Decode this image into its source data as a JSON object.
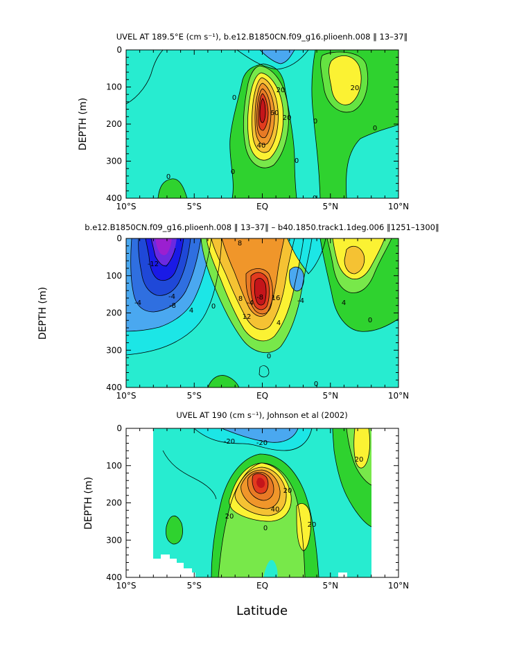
{
  "colors": {
    "neg_violet": "#9b1fd0",
    "neg_blue": "#1a1ae6",
    "neg_mid": "#2f6fe0",
    "neg_light": "#4aa8f0",
    "near_zero": "#1ce6e6",
    "zero_band": "#27ecd0",
    "pos_light": "#78e84a",
    "pos_green": "#2fd22f",
    "pos_yellow": "#fbf233",
    "pos_gold": "#f5c233",
    "pos_orange": "#f0962a",
    "pos_red": "#e23b1e",
    "pos_darkred": "#c4151a",
    "contour": "#000000"
  },
  "xlabel": "Latitude",
  "chart_data": [
    {
      "type": "contour",
      "title": "UVEL AT 189.5°E (cm s⁻¹), b.e12.B1850CN.f09_g16.plioenh.008 ‖ 13–37‖",
      "ylabel": "DEPTH (m)",
      "x_ticks": [
        "10°S",
        "5°S",
        "EQ",
        "5°N",
        "10°N"
      ],
      "x_values": [
        -10,
        -5,
        0,
        5,
        10
      ],
      "xlim": [
        -10,
        10
      ],
      "y_ticks": [
        "0",
        "100",
        "200",
        "300",
        "400"
      ],
      "y_values": [
        0,
        100,
        200,
        300,
        400
      ],
      "ylim": [
        0,
        400
      ],
      "y_inverted": true,
      "contour_labels": [
        "0",
        "0",
        "0",
        "0",
        "0",
        "0",
        "0",
        "20",
        "20",
        "20",
        "40",
        "60"
      ],
      "features": [
        {
          "name": "Equatorial Undercurrent core",
          "lat": 0,
          "depth": 150,
          "max": 80
        },
        {
          "name": "NECC core",
          "lat": 6,
          "depth": 80,
          "max": 30
        }
      ]
    },
    {
      "type": "contour",
      "title": "b.e12.B1850CN.f09_g16.plioenh.008 ‖ 13–37‖ – b40.1850.track1.1deg.006 ‖1251–1300‖",
      "ylabel": "DEPTH (m)",
      "x_ticks": [
        "10°S",
        "5°S",
        "EQ",
        "5°N",
        "10°N"
      ],
      "x_values": [
        -10,
        -5,
        0,
        5,
        10
      ],
      "xlim": [
        -10,
        10
      ],
      "y_ticks": [
        "0",
        "100",
        "200",
        "300",
        "400"
      ],
      "y_values": [
        0,
        100,
        200,
        300,
        400
      ],
      "ylim": [
        0,
        400
      ],
      "y_inverted": true,
      "contour_labels": [
        "8",
        "8",
        "-8",
        "-12",
        "-4",
        "-4",
        "4",
        "4",
        "4",
        "0",
        "0",
        "0",
        "0",
        "-4",
        "16",
        "12",
        "-8",
        "-4"
      ],
      "features": [
        {
          "name": "negative anomaly",
          "lat": -7.5,
          "depth": 40,
          "min": -20
        },
        {
          "name": "positive anomaly core",
          "lat": 0,
          "depth": 150,
          "max": 20
        },
        {
          "name": "northern positive anomaly",
          "lat": 6.5,
          "depth": 60,
          "max": 12
        }
      ]
    },
    {
      "type": "contour",
      "title": "UVEL AT 190 (cm s⁻¹), Johnson et al (2002)",
      "ylabel": "DEPTH (m)",
      "x_ticks": [
        "10°S",
        "5°S",
        "EQ",
        "5°N",
        "10°N"
      ],
      "x_values": [
        -10,
        -5,
        0,
        5,
        10
      ],
      "xlim": [
        -10,
        10
      ],
      "y_ticks": [
        "0",
        "100",
        "200",
        "300",
        "400"
      ],
      "y_values": [
        0,
        100,
        200,
        300,
        400
      ],
      "ylim": [
        0,
        400
      ],
      "y_inverted": true,
      "data_lat_range": [
        -8,
        8
      ],
      "contour_labels": [
        "-20",
        "-20",
        "0",
        "20",
        "20",
        "20",
        "20",
        "40"
      ],
      "features": [
        {
          "name": "Equatorial Undercurrent core",
          "lat": 0,
          "depth": 150,
          "max": 80
        },
        {
          "name": "NECC core",
          "lat": 7,
          "depth": 50,
          "max": 30
        }
      ]
    }
  ]
}
